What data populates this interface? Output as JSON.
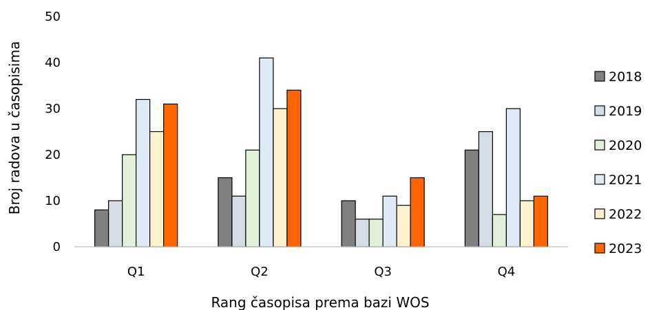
{
  "chart_data": {
    "type": "bar",
    "xlabel": "Rang časopisa prema bazi WOS",
    "ylabel": "Broj radova u časopisima",
    "categories": [
      "Q1",
      "Q2",
      "Q3",
      "Q4"
    ],
    "ylim": [
      0,
      50
    ],
    "yticks": [
      "0",
      "10",
      "20",
      "30",
      "40",
      "50"
    ],
    "grid": false,
    "legend_position": "right",
    "series": [
      {
        "name": "2018",
        "color": "#808080",
        "values": [
          8,
          15,
          10,
          21
        ]
      },
      {
        "name": "2019",
        "color": "#d6dce5",
        "values": [
          10,
          11,
          6,
          25
        ]
      },
      {
        "name": "2020",
        "color": "#e2f0d9",
        "values": [
          20,
          21,
          6,
          7
        ]
      },
      {
        "name": "2021",
        "color": "#deebf7",
        "values": [
          32,
          41,
          11,
          30
        ]
      },
      {
        "name": "2022",
        "color": "#fff2cc",
        "values": [
          25,
          30,
          9,
          10
        ]
      },
      {
        "name": "2023",
        "color": "#ff6600",
        "values": [
          31,
          34,
          15,
          11
        ]
      }
    ]
  }
}
